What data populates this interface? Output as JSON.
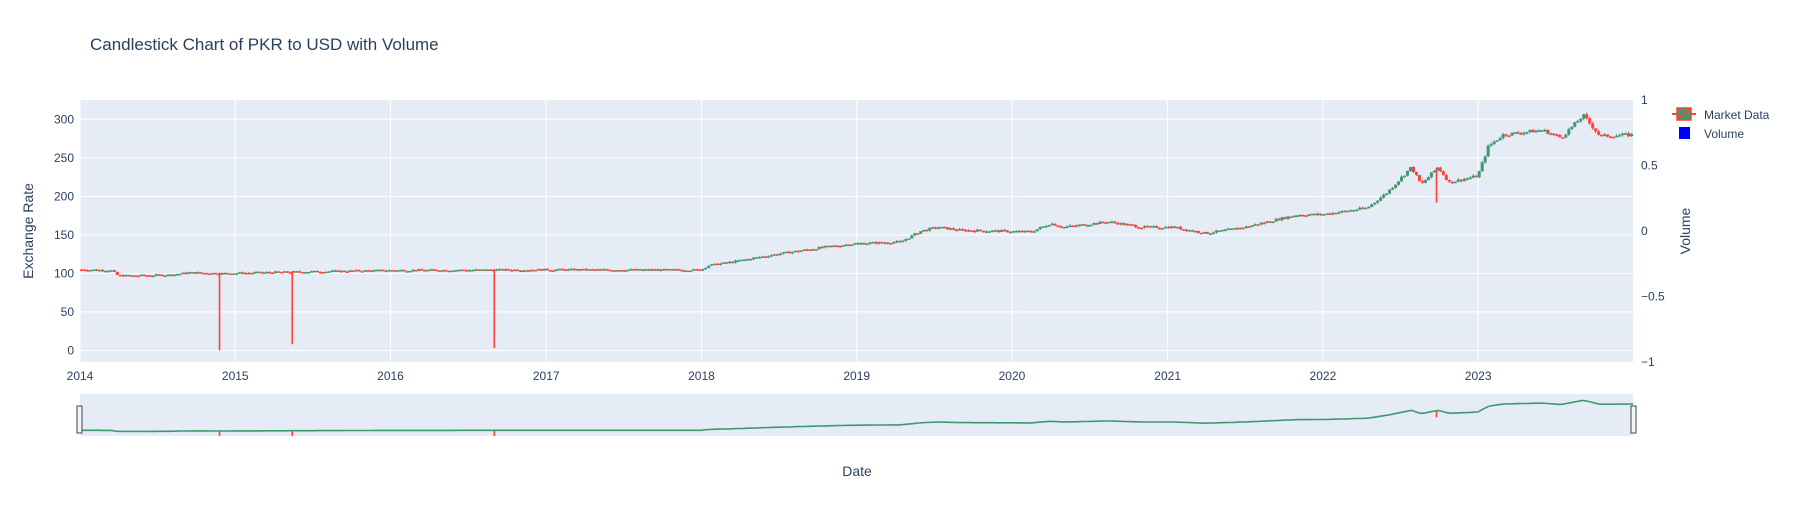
{
  "chart_data": {
    "type": "candlestick",
    "title": "Candlestick Chart of PKR to USD with Volume",
    "xlabel": "Date",
    "ylabel": "Exchange Rate",
    "y2label": "Volume",
    "xlim": [
      "2014-01-01",
      "2023-12-31"
    ],
    "ylim": [
      -15,
      325
    ],
    "y2lim": [
      -1,
      1
    ],
    "x_ticks": [
      "2014",
      "2015",
      "2016",
      "2017",
      "2018",
      "2019",
      "2020",
      "2021",
      "2022",
      "2023"
    ],
    "y_ticks": [
      0,
      50,
      100,
      150,
      200,
      250,
      300
    ],
    "y2_ticks": [
      "−1",
      "−0.5",
      "0",
      "0.5",
      "1"
    ],
    "legend": {
      "placement": "top-right",
      "entries": [
        "Market Data",
        "Volume"
      ]
    },
    "rangeslider": true,
    "colors": {
      "increasing": "#3d9970",
      "decreasing": "#ff4136",
      "volume": "#0000ff",
      "plot_bg": "#e5ecf6",
      "grid": "#ffffff"
    },
    "series": [
      {
        "name": "Market Data",
        "price_path": [
          [
            "2014-01-01",
            105
          ],
          [
            "2014-03-15",
            104
          ],
          [
            "2014-04-01",
            97
          ],
          [
            "2014-05-01",
            97
          ],
          [
            "2014-08-01",
            98
          ],
          [
            "2014-09-15",
            101
          ],
          [
            "2014-12-01",
            100
          ],
          [
            "2015-06-01",
            102
          ],
          [
            "2015-12-31",
            104
          ],
          [
            "2016-12-31",
            104.8
          ],
          [
            "2017-12-31",
            104.5
          ],
          [
            "2018-01-15",
            110
          ],
          [
            "2018-03-15",
            115
          ],
          [
            "2018-06-15",
            124
          ],
          [
            "2018-10-15",
            134
          ],
          [
            "2018-12-31",
            138.8
          ],
          [
            "2019-03-01",
            140
          ],
          [
            "2019-04-15",
            141
          ],
          [
            "2019-06-01",
            155
          ],
          [
            "2019-07-10",
            160
          ],
          [
            "2019-09-01",
            156
          ],
          [
            "2020-02-15",
            154
          ],
          [
            "2020-04-01",
            165
          ],
          [
            "2020-05-01",
            160
          ],
          [
            "2020-08-15",
            167
          ],
          [
            "2020-11-01",
            160
          ],
          [
            "2021-01-15",
            160
          ],
          [
            "2021-04-01",
            152
          ],
          [
            "2021-07-01",
            160
          ],
          [
            "2021-11-01",
            176
          ],
          [
            "2021-12-31",
            176.5
          ],
          [
            "2022-04-15",
            185
          ],
          [
            "2022-06-01",
            205
          ],
          [
            "2022-07-28",
            238
          ],
          [
            "2022-08-20",
            215
          ],
          [
            "2022-09-28",
            238
          ],
          [
            "2022-10-25",
            218
          ],
          [
            "2022-12-31",
            226.4
          ],
          [
            "2023-01-25",
            265
          ],
          [
            "2023-03-01",
            280
          ],
          [
            "2023-06-01",
            286
          ],
          [
            "2023-07-15",
            276
          ],
          [
            "2023-09-05",
            305
          ],
          [
            "2023-10-15",
            278
          ],
          [
            "2023-12-31",
            280
          ]
        ],
        "low_wicks": [
          {
            "date": "2014-11-25",
            "low": 0
          },
          {
            "date": "2015-05-15",
            "low": 8
          },
          {
            "date": "2016-09-01",
            "low": 3
          },
          {
            "date": "2022-09-25",
            "low": 192
          }
        ]
      },
      {
        "name": "Volume",
        "values": []
      }
    ]
  }
}
